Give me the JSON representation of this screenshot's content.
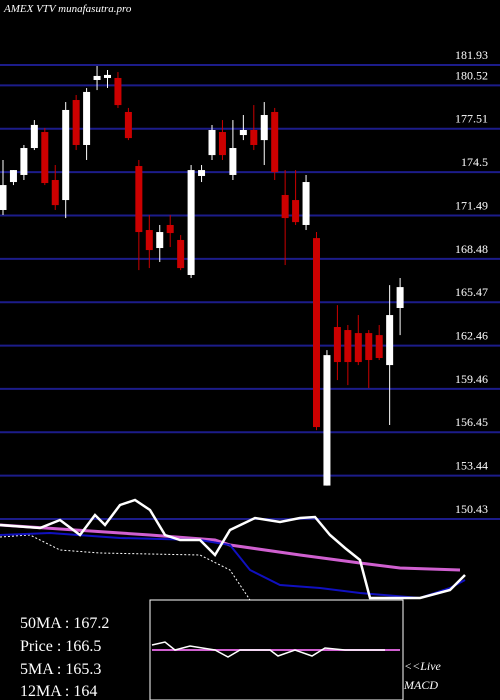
{
  "chart_data": {
    "type": "candlestick",
    "title": "AMEX VTV munafasutra.pro",
    "ylim": [
      150.43,
      181.93
    ],
    "yticks": [
      181.93,
      180.52,
      177.51,
      174.5,
      171.49,
      168.48,
      165.47,
      162.46,
      159.46,
      156.45,
      153.44,
      150.43
    ],
    "grid": true,
    "grid_color": "#1c1c8a",
    "up_color": "#ffffff",
    "down_color": "#cc0000",
    "open": [
      171.87,
      173.81,
      174.3,
      176.17,
      177.28,
      173.95,
      172.56,
      179.5,
      176.38,
      180.89,
      181.03,
      181.03,
      178.67,
      174.92,
      170.48,
      169.23,
      170.83,
      169.79,
      167.36,
      174.23,
      175.68,
      177.28,
      174.3,
      177.07,
      177.42,
      176.72,
      178.67,
      172.91,
      172.56,
      170.83,
      169.92,
      152.75,
      163.75,
      163.54,
      163.33,
      163.33,
      163.19,
      161.11,
      165.07
    ],
    "high": [
      175.34,
      174.64,
      176.38,
      178.11,
      177.56,
      174.99,
      179.36,
      179.85,
      180.33,
      181.86,
      181.58,
      181.44,
      178.95,
      175.34,
      171.52,
      170.83,
      171.52,
      170.13,
      174.99,
      174.99,
      177.77,
      178.11,
      178.11,
      178.46,
      179.15,
      179.36,
      178.95,
      174.64,
      174.64,
      174.3,
      170.34,
      162.15,
      165.27,
      163.89,
      164.58,
      163.54,
      163.89,
      166.66,
      167.15
    ],
    "low": [
      171.52,
      173.6,
      173.95,
      176.03,
      173.6,
      171.87,
      171.31,
      176.03,
      175.34,
      180.19,
      180.33,
      178.95,
      176.72,
      167.7,
      167.84,
      168.26,
      169.3,
      167.7,
      167.15,
      173.81,
      175.34,
      175.34,
      173.95,
      176.72,
      176.03,
      174.99,
      173.95,
      168.05,
      170.83,
      170.48,
      156.6,
      152.75,
      160.07,
      159.72,
      161.11,
      159.51,
      161.46,
      156.95,
      163.19
    ],
    "close": [
      173.6,
      174.64,
      176.17,
      177.77,
      173.74,
      172.21,
      178.81,
      176.38,
      180.06,
      181.17,
      181.24,
      179.15,
      176.86,
      170.34,
      169.09,
      170.34,
      170.27,
      167.84,
      174.64,
      174.64,
      177.42,
      175.68,
      176.17,
      177.42,
      176.38,
      178.46,
      174.5,
      171.31,
      171.03,
      173.81,
      156.81,
      161.8,
      161.32,
      161.32,
      161.32,
      161.46,
      161.6,
      164.58,
      166.52
    ],
    "stats": [
      "50MA : 167.2",
      "Price  : 166.5",
      "5MA : 165.3",
      "12MA : 164"
    ],
    "live_label": "<<Live",
    "macd_label": "MACD"
  }
}
